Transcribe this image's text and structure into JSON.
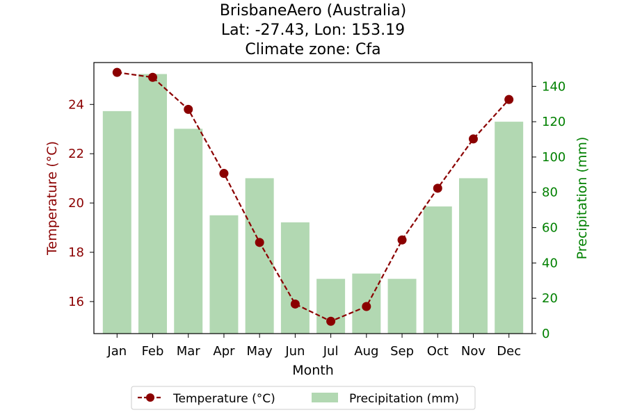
{
  "chart_data": {
    "type": "bar+line",
    "title_lines": [
      "BrisbaneAero (Australia)",
      "Lat: -27.43, Lon: 153.19",
      "Climate zone: Cfa"
    ],
    "xlabel": "Month",
    "ylabel_left": "Temperature (°C)",
    "ylabel_right": "Precipitation (mm)",
    "categories": [
      "Jan",
      "Feb",
      "Mar",
      "Apr",
      "May",
      "Jun",
      "Jul",
      "Aug",
      "Sep",
      "Oct",
      "Nov",
      "Dec"
    ],
    "temperature": {
      "name": "Temperature (°C)",
      "values": [
        25.3,
        25.1,
        23.8,
        21.2,
        18.4,
        15.9,
        15.2,
        15.8,
        18.5,
        20.6,
        22.6,
        24.2
      ]
    },
    "precipitation": {
      "name": "Precipitation (mm)",
      "values": [
        126,
        147,
        116,
        67,
        88,
        63,
        31,
        34,
        31,
        72,
        88,
        120
      ]
    },
    "ylim_left": [
      14.7,
      25.7
    ],
    "yticks_left": [
      16,
      18,
      20,
      22,
      24
    ],
    "ylim_right": [
      0,
      153.5
    ],
    "yticks_right": [
      0,
      20,
      40,
      60,
      80,
      100,
      120,
      140
    ],
    "legend_position": "bottom-center",
    "grid": false,
    "colors": {
      "temperature": "#8b0000",
      "precipitation": "#b2d8b2",
      "right_axis": "#008000",
      "axis": "#000000"
    }
  }
}
